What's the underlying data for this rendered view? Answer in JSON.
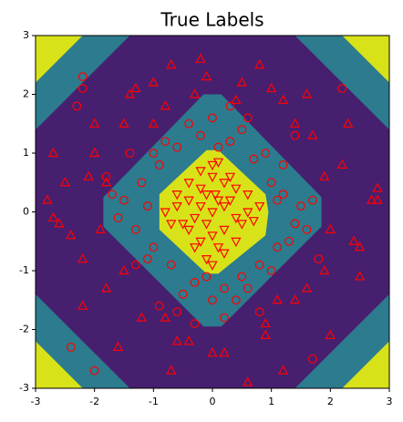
{
  "chart_data": {
    "type": "scatter",
    "title": "True Labels",
    "xlim": [
      -3,
      3
    ],
    "ylim": [
      -3,
      3
    ],
    "xticks": [
      -3,
      -2,
      -1,
      0,
      1,
      2,
      3
    ],
    "yticks": [
      -3,
      -2,
      -1,
      0,
      1,
      2,
      3
    ],
    "series": [
      {
        "marker": "triangle-down",
        "color": "red",
        "x": [
          -0.8,
          -0.6,
          -0.4,
          -0.2,
          0,
          0.2,
          0.4,
          0.6,
          0.8,
          -0.6,
          -0.4,
          -0.2,
          0,
          0.2,
          0.4,
          0.6,
          -0.4,
          -0.2,
          0,
          0.2,
          0.4,
          -0.2,
          0,
          0.2,
          -0.5,
          -0.3,
          -0.1,
          0.1,
          0.3,
          0.5,
          -0.3,
          -0.1,
          0.1,
          0.3,
          -0.1,
          0.1,
          0,
          0.7,
          -0.7,
          0.05
        ],
        "y": [
          0,
          0.1,
          0.2,
          0.1,
          0,
          0.1,
          -0.1,
          0,
          0.1,
          0.3,
          0.5,
          0.4,
          0.6,
          0.5,
          0.4,
          0.3,
          -0.3,
          -0.5,
          -0.4,
          -0.3,
          -0.5,
          0.7,
          0.8,
          -0.7,
          -0.2,
          -0.1,
          -0.2,
          0.2,
          0.2,
          -0.2,
          -0.6,
          0.3,
          -0.6,
          0.6,
          -0.8,
          0.85,
          -0.9,
          -0.15,
          -0.2,
          0.3
        ]
      },
      {
        "marker": "circle",
        "color": "red",
        "x": [
          1.0,
          1.2,
          1.4,
          1.1,
          0.8,
          0.5,
          0.2,
          -0.3,
          -0.7,
          -1.0,
          -1.3,
          -1.5,
          -1.2,
          -0.9,
          -0.6,
          -0.2,
          0.3,
          0.7,
          1.5,
          1.6,
          0.9,
          0.5,
          -0.4,
          -1.0,
          -1.6,
          -1.1,
          -0.5,
          0.4,
          1.0,
          1.3,
          0.0,
          0.0,
          1.7,
          -1.7,
          0.6,
          -0.8,
          1.2,
          -1.3,
          -2.3,
          -2.2,
          -2.2,
          2.2,
          -2.4,
          -2.0,
          1.7,
          0.2,
          -0.9,
          1.4,
          -1.4,
          0.8,
          1.1,
          -1.1,
          0.1,
          -0.1,
          0.6,
          -0.6,
          1.8,
          -1.8,
          0.3,
          -0.3
        ],
        "y": [
          0.5,
          0.3,
          -0.2,
          -0.6,
          -0.9,
          -1.1,
          -1.3,
          -1.2,
          -0.9,
          -0.6,
          -0.3,
          0.2,
          0.5,
          0.8,
          1.1,
          1.3,
          1.2,
          0.9,
          0.1,
          -0.3,
          1.0,
          1.4,
          1.5,
          1.0,
          -0.1,
          -0.8,
          -1.4,
          -1.5,
          -1.0,
          -0.5,
          1.6,
          -1.5,
          0.2,
          0.3,
          -1.3,
          1.2,
          0.8,
          -0.9,
          1.8,
          2.3,
          2.1,
          2.1,
          -2.3,
          -2.7,
          -2.5,
          -1.8,
          -1.6,
          1.3,
          1.0,
          -1.7,
          0.2,
          0.1,
          1.1,
          -1.1,
          1.6,
          -1.7,
          -0.8,
          0.6,
          1.8,
          -1.9
        ]
      },
      {
        "marker": "triangle-up",
        "color": "red",
        "x": [
          -0.8,
          -1.5,
          -2.0,
          -2.5,
          -2.6,
          -2.2,
          -1.8,
          -1.2,
          -0.6,
          0.2,
          0.9,
          1.4,
          1.9,
          2.4,
          2.7,
          2.2,
          1.7,
          1.2,
          0.5,
          -0.2,
          -0.7,
          -1.3,
          -2.0,
          -2.7,
          -2.7,
          -2.2,
          -1.6,
          -0.7,
          0.6,
          1.2,
          2.0,
          2.5,
          2.8,
          2.3,
          1.6,
          0.8,
          -0.3,
          -1.0,
          -1.8,
          -1.9,
          -1.5,
          -0.8,
          0.9,
          1.6,
          2.0,
          1.9,
          1.4,
          0.4,
          -2.4,
          2.5,
          1.0,
          -1.4,
          -2.1,
          0.0,
          -0.4,
          2.8,
          -2.8,
          -1.0,
          1.1,
          -0.1
        ],
        "y": [
          1.8,
          1.5,
          1.0,
          0.5,
          -0.2,
          -0.8,
          -1.3,
          -1.8,
          -2.2,
          -2.4,
          -2.1,
          -1.5,
          -1.0,
          -0.5,
          0.2,
          0.8,
          1.3,
          1.9,
          2.2,
          2.6,
          2.5,
          2.1,
          1.5,
          1.0,
          -0.1,
          -1.6,
          -2.3,
          -2.7,
          -2.9,
          -2.7,
          -2.1,
          -1.1,
          0.4,
          1.5,
          2.0,
          2.5,
          2.0,
          2.2,
          0.5,
          -0.3,
          -1.0,
          -1.8,
          -1.9,
          -1.3,
          -0.3,
          0.6,
          1.5,
          1.9,
          -0.4,
          -0.6,
          2.1,
          2.0,
          0.6,
          -2.4,
          -2.2,
          0.2,
          0.2,
          1.5,
          -1.5,
          2.3
        ]
      }
    ]
  }
}
